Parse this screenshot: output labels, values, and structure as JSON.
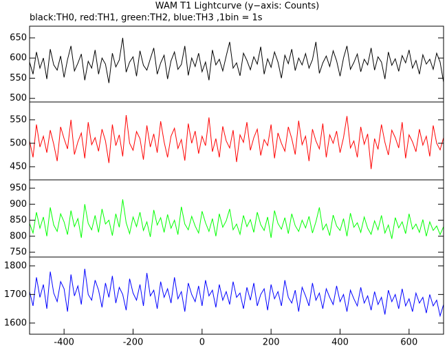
{
  "chart_data": [
    {
      "type": "line",
      "title": "WAM T1 Lightcurve (y−axis: Counts)",
      "subtitle": "black:TH0, red:TH1, green:TH2, blue:TH3 ,1bin = 1s",
      "x": [
        -500,
        -490,
        -480,
        -470,
        -460,
        -450,
        -440,
        -430,
        -420,
        -410,
        -400,
        -390,
        -380,
        -370,
        -360,
        -350,
        -340,
        -330,
        -320,
        -310,
        -300,
        -290,
        -280,
        -270,
        -260,
        -250,
        -240,
        -230,
        -220,
        -210,
        -200,
        -190,
        -180,
        -170,
        -160,
        -150,
        -140,
        -130,
        -120,
        -110,
        -100,
        -90,
        -80,
        -70,
        -60,
        -50,
        -40,
        -30,
        -20,
        -10,
        0,
        10,
        20,
        30,
        40,
        50,
        60,
        70,
        80,
        90,
        100,
        110,
        120,
        130,
        140,
        150,
        160,
        170,
        180,
        190,
        200,
        210,
        220,
        230,
        240,
        250,
        260,
        270,
        280,
        290,
        300,
        310,
        320,
        330,
        340,
        350,
        360,
        370,
        380,
        390,
        400,
        410,
        420,
        430,
        440,
        450,
        460,
        470,
        480,
        490,
        500,
        510,
        520,
        530,
        540,
        550,
        560,
        570,
        580,
        590,
        600,
        610,
        620,
        630,
        640,
        650,
        660,
        670,
        680,
        690,
        700
      ],
      "color": "#000000",
      "values": [
        590,
        560,
        615,
        575,
        600,
        548,
        622,
        583,
        570,
        605,
        552,
        596,
        630,
        568,
        587,
        610,
        545,
        592,
        575,
        620,
        560,
        600,
        585,
        538,
        612,
        578,
        595,
        650,
        565,
        590,
        603,
        555,
        618,
        582,
        570,
        598,
        625,
        560,
        588,
        607,
        548,
        593,
        615,
        572,
        584,
        630,
        557,
        600,
        579,
        612,
        566,
        590,
        545,
        620,
        583,
        597,
        568,
        605,
        640,
        575,
        588,
        556,
        612,
        594,
        571,
        603,
        585,
        628,
        560,
        598,
        577,
        615,
        590,
        550,
        607,
        586,
        622,
        569,
        600,
        583,
        611,
        575,
        596,
        640,
        562,
        588,
        605,
        579,
        618,
        593,
        555,
        600,
        630,
        572,
        589,
        610,
        566,
        597,
        583,
        625,
        570,
        603,
        590,
        548,
        615,
        582,
        598,
        567,
        606,
        588,
        620,
        575,
        594,
        560,
        608,
        585,
        597,
        572,
        612,
        590,
        540
      ],
      "xlim": [
        -500,
        700
      ],
      "ylim": [
        491,
        679
      ],
      "yticks": [
        500,
        550,
        600,
        650
      ]
    },
    {
      "type": "line",
      "x": [
        -500,
        -490,
        -480,
        -470,
        -460,
        -450,
        -440,
        -430,
        -420,
        -410,
        -400,
        -390,
        -380,
        -370,
        -360,
        -350,
        -340,
        -330,
        -320,
        -310,
        -300,
        -290,
        -280,
        -270,
        -260,
        -250,
        -240,
        -230,
        -220,
        -210,
        -200,
        -190,
        -180,
        -170,
        -160,
        -150,
        -140,
        -130,
        -120,
        -110,
        -100,
        -90,
        -80,
        -70,
        -60,
        -50,
        -40,
        -30,
        -20,
        -10,
        0,
        10,
        20,
        30,
        40,
        50,
        60,
        70,
        80,
        90,
        100,
        110,
        120,
        130,
        140,
        150,
        160,
        170,
        180,
        190,
        200,
        210,
        220,
        230,
        240,
        250,
        260,
        270,
        280,
        290,
        300,
        310,
        320,
        330,
        340,
        350,
        360,
        370,
        380,
        390,
        400,
        410,
        420,
        430,
        440,
        450,
        460,
        470,
        480,
        490,
        500,
        510,
        520,
        530,
        540,
        550,
        560,
        570,
        580,
        590,
        600,
        610,
        620,
        630,
        640,
        650,
        660,
        670,
        680,
        690,
        700
      ],
      "color": "#ff0000",
      "values": [
        505,
        470,
        540,
        492,
        515,
        480,
        528,
        498,
        462,
        535,
        510,
        488,
        550,
        476,
        503,
        522,
        468,
        545,
        497,
        512,
        483,
        530,
        505,
        458,
        540,
        495,
        518,
        472,
        560,
        500,
        485,
        525,
        510,
        465,
        538,
        492,
        520,
        480,
        547,
        503,
        470,
        515,
        532,
        489,
        508,
        463,
        542,
        500,
        526,
        478,
        515,
        495,
        555,
        482,
        510,
        470,
        536,
        505,
        490,
        528,
        460,
        518,
        502,
        545,
        485,
        512,
        530,
        474,
        508,
        495,
        540,
        468,
        522,
        500,
        483,
        535,
        510,
        476,
        548,
        497,
        515,
        462,
        530,
        505,
        488,
        542,
        470,
        518,
        500,
        526,
        480,
        512,
        558,
        490,
        505,
        470,
        535,
        498,
        520,
        445,
        510,
        487,
        540,
        502,
        475,
        528,
        512,
        490,
        545,
        468,
        518,
        503,
        482,
        530,
        496,
        515,
        472,
        538,
        500,
        486,
        512
      ],
      "xlim": [
        -500,
        700
      ],
      "ylim": [
        422,
        588
      ],
      "yticks": [
        450,
        500,
        550
      ]
    },
    {
      "type": "line",
      "x": [
        -500,
        -490,
        -480,
        -470,
        -460,
        -450,
        -440,
        -430,
        -420,
        -410,
        -400,
        -390,
        -380,
        -370,
        -360,
        -350,
        -340,
        -330,
        -320,
        -310,
        -300,
        -290,
        -280,
        -270,
        -260,
        -250,
        -240,
        -230,
        -220,
        -210,
        -200,
        -190,
        -180,
        -170,
        -160,
        -150,
        -140,
        -130,
        -120,
        -110,
        -100,
        -90,
        -80,
        -70,
        -60,
        -50,
        -40,
        -30,
        -20,
        -10,
        0,
        10,
        20,
        30,
        40,
        50,
        60,
        70,
        80,
        90,
        100,
        110,
        120,
        130,
        140,
        150,
        160,
        170,
        180,
        190,
        200,
        210,
        220,
        230,
        240,
        250,
        260,
        270,
        280,
        290,
        300,
        310,
        320,
        330,
        340,
        350,
        360,
        370,
        380,
        390,
        400,
        410,
        420,
        430,
        440,
        450,
        460,
        470,
        480,
        490,
        500,
        510,
        520,
        530,
        540,
        550,
        560,
        570,
        580,
        590,
        600,
        610,
        620,
        630,
        640,
        650,
        660,
        670,
        680,
        690,
        700
      ],
      "color": "#00ff00",
      "values": [
        840,
        810,
        875,
        825,
        860,
        800,
        890,
        835,
        815,
        870,
        845,
        805,
        880,
        830,
        855,
        795,
        900,
        840,
        820,
        865,
        812,
        885,
        838,
        850,
        802,
        870,
        828,
        915,
        842,
        808,
        860,
        830,
        875,
        818,
        845,
        798,
        882,
        835,
        858,
        812,
        868,
        825,
        850,
        805,
        892,
        838,
        820,
        862,
        832,
        810,
        878,
        842,
        815,
        855,
        800,
        870,
        828,
        848,
        885,
        820,
        838,
        806,
        865,
        830,
        852,
        812,
        875,
        836,
        818,
        860,
        795,
        880,
        840,
        822,
        858,
        808,
        870,
        833,
        815,
        850,
        826,
        862,
        810,
        845,
        890,
        820,
        838,
        802,
        866,
        832,
        818,
        855,
        800,
        872,
        828,
        842,
        812,
        860,
        825,
        806,
        848,
        820,
        865,
        810,
        835,
        792,
        858,
        826,
        845,
        808,
        870,
        822,
        838,
        812,
        852,
        800,
        845,
        818,
        832,
        805,
        830
      ],
      "xlim": [
        -500,
        700
      ],
      "ylim": [
        735,
        976
      ],
      "yticks": [
        750,
        800,
        850,
        900,
        950
      ]
    },
    {
      "type": "line",
      "x": [
        -500,
        -490,
        -480,
        -470,
        -460,
        -450,
        -440,
        -430,
        -420,
        -410,
        -400,
        -390,
        -380,
        -370,
        -360,
        -350,
        -340,
        -330,
        -320,
        -310,
        -300,
        -290,
        -280,
        -270,
        -260,
        -250,
        -240,
        -230,
        -220,
        -210,
        -200,
        -190,
        -180,
        -170,
        -160,
        -150,
        -140,
        -130,
        -120,
        -110,
        -100,
        -90,
        -80,
        -70,
        -60,
        -50,
        -40,
        -30,
        -20,
        -10,
        0,
        10,
        20,
        30,
        40,
        50,
        60,
        70,
        80,
        90,
        100,
        110,
        120,
        130,
        140,
        150,
        160,
        170,
        180,
        190,
        200,
        210,
        220,
        230,
        240,
        250,
        260,
        270,
        280,
        290,
        300,
        310,
        320,
        330,
        340,
        350,
        360,
        370,
        380,
        390,
        400,
        410,
        420,
        430,
        440,
        450,
        460,
        470,
        480,
        490,
        500,
        510,
        520,
        530,
        540,
        550,
        560,
        570,
        580,
        590,
        600,
        610,
        620,
        630,
        640,
        650,
        660,
        670,
        680,
        690,
        700
      ],
      "color": "#0000ff",
      "values": [
        1710,
        1660,
        1760,
        1690,
        1735,
        1650,
        1780,
        1705,
        1675,
        1745,
        1720,
        1640,
        1770,
        1695,
        1730,
        1665,
        1790,
        1700,
        1680,
        1750,
        1715,
        1655,
        1740,
        1690,
        1765,
        1670,
        1725,
        1700,
        1645,
        1755,
        1705,
        1680,
        1735,
        1660,
        1775,
        1695,
        1715,
        1650,
        1745,
        1690,
        1720,
        1670,
        1760,
        1685,
        1710,
        1640,
        1740,
        1700,
        1675,
        1730,
        1660,
        1750,
        1695,
        1715,
        1655,
        1735,
        1680,
        1710,
        1665,
        1745,
        1690,
        1705,
        1650,
        1725,
        1680,
        1740,
        1660,
        1700,
        1720,
        1645,
        1735,
        1685,
        1710,
        1660,
        1750,
        1690,
        1670,
        1715,
        1640,
        1725,
        1695,
        1660,
        1740,
        1680,
        1705,
        1650,
        1720,
        1690,
        1665,
        1730,
        1675,
        1700,
        1640,
        1715,
        1685,
        1660,
        1725,
        1670,
        1695,
        1645,
        1710,
        1665,
        1690,
        1630,
        1715,
        1675,
        1700,
        1650,
        1720,
        1660,
        1685,
        1640,
        1705,
        1670,
        1690,
        1635,
        1700,
        1660,
        1680,
        1625,
        1665
      ],
      "xlim": [
        -500,
        700
      ],
      "ylim": [
        1561,
        1831
      ],
      "yticks": [
        1600,
        1700,
        1800
      ],
      "xticks": [
        -400,
        -200,
        0,
        200,
        400,
        600
      ]
    }
  ]
}
